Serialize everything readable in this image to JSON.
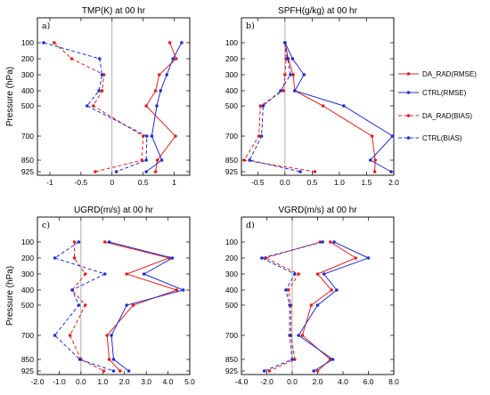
{
  "colors": {
    "da_rad": "#e02020",
    "ctrl": "#1f2fd0"
  },
  "legend": [
    {
      "name": "DA_RAD(RMSE)",
      "color": "#e02020",
      "dash": false
    },
    {
      "name": "CTRL(RMSE)",
      "color": "#1f2fd0",
      "dash": false
    },
    {
      "name": "DA_RAD(BIAS)",
      "color": "#e02020",
      "dash": true
    },
    {
      "name": "CTRL(BIAS)",
      "color": "#1f2fd0",
      "dash": true
    }
  ],
  "chart_data": [
    {
      "type": "line",
      "label": "a)",
      "title": "TMP(K) at 00 hr",
      "ylabel": "Pressure (hPa)",
      "xlim": [
        -1.2,
        1.25
      ],
      "xticks": [
        -1,
        -0.5,
        0,
        0.5,
        1
      ],
      "xtick_labels": [
        "-1",
        "-0.5",
        "0",
        "0.5",
        "1"
      ],
      "pressure_levels": [
        100,
        200,
        300,
        400,
        500,
        700,
        850,
        925
      ],
      "series": [
        {
          "name": "DA_RAD(RMSE)",
          "values": [
            0.93,
            1.03,
            0.76,
            0.7,
            0.55,
            1.02,
            0.73,
            0.7
          ]
        },
        {
          "name": "CTRL(RMSE)",
          "values": [
            1.12,
            0.98,
            0.88,
            0.78,
            0.72,
            0.64,
            0.8,
            0.55
          ]
        },
        {
          "name": "DA_RAD(BIAS)",
          "values": [
            -0.93,
            -0.65,
            -0.13,
            -0.16,
            -0.3,
            0.5,
            0.48,
            -0.27
          ]
        },
        {
          "name": "CTRL(BIAS)",
          "values": [
            -1.1,
            -0.2,
            -0.16,
            -0.21,
            -0.4,
            0.56,
            0.55,
            0.07
          ]
        }
      ]
    },
    {
      "type": "line",
      "label": "b)",
      "title": "SPFH(g/kg) at 00 hr",
      "ylabel": "",
      "xlim": [
        -0.8,
        2.0
      ],
      "xticks": [
        -0.5,
        0,
        0.5,
        1,
        1.5,
        2
      ],
      "xtick_labels": [
        "-0.5",
        "0.0",
        "0.5",
        "1.0",
        "1.5",
        "2.0"
      ],
      "pressure_levels": [
        100,
        200,
        300,
        400,
        500,
        700,
        850,
        925
      ],
      "series": [
        {
          "name": "DA_RAD(RMSE)",
          "values": [
            0.0,
            0.06,
            0.15,
            0.18,
            0.7,
            1.6,
            1.66,
            1.65
          ]
        },
        {
          "name": "CTRL(RMSE)",
          "values": [
            0.0,
            0.14,
            0.35,
            0.18,
            1.08,
            1.98,
            1.57,
            1.95
          ]
        },
        {
          "name": "DA_RAD(BIAS)",
          "values": [
            0.0,
            0.02,
            0.0,
            -0.03,
            -0.45,
            -0.48,
            -0.75,
            0.55
          ]
        },
        {
          "name": "CTRL(BIAS)",
          "values": [
            0.0,
            0.05,
            0.1,
            -0.08,
            -0.4,
            -0.43,
            -0.65,
            0.28
          ]
        }
      ]
    },
    {
      "type": "line",
      "label": "c)",
      "title": "UGRD(m/s) at 00 hr",
      "ylabel": "Pressure (hPa)",
      "xlim": [
        -2.0,
        5.0
      ],
      "xticks": [
        -2,
        -1,
        0,
        1,
        2,
        3,
        4,
        5
      ],
      "xtick_labels": [
        "-2.0",
        "-1.0",
        "0.0",
        "1.0",
        "2.0",
        "3.0",
        "4.0",
        "5.0"
      ],
      "pressure_levels": [
        100,
        200,
        300,
        400,
        500,
        700,
        850,
        925
      ],
      "series": [
        {
          "name": "DA_RAD(RMSE)",
          "values": [
            1.1,
            4.05,
            2.1,
            4.4,
            2.4,
            1.2,
            1.3,
            1.8
          ]
        },
        {
          "name": "CTRL(RMSE)",
          "values": [
            1.3,
            4.2,
            2.9,
            4.7,
            2.1,
            1.4,
            1.5,
            2.2
          ]
        },
        {
          "name": "DA_RAD(BIAS)",
          "values": [
            -0.3,
            -0.3,
            0.2,
            -0.4,
            0.2,
            -0.5,
            0.0,
            1.05
          ]
        },
        {
          "name": "CTRL(BIAS)",
          "values": [
            -0.1,
            -1.2,
            1.1,
            -0.4,
            -0.1,
            -1.2,
            -0.05,
            1.5
          ]
        }
      ]
    },
    {
      "type": "line",
      "label": "d)",
      "title": "VGRD(m/s) at 00 hr",
      "ylabel": "",
      "xlim": [
        -4.0,
        8.0
      ],
      "xticks": [
        -4,
        -2,
        0,
        2,
        4,
        6,
        8
      ],
      "xtick_labels": [
        "-4.0",
        "-2.0",
        "0.0",
        "2.0",
        "4.0",
        "6.0",
        "8.0"
      ],
      "pressure_levels": [
        100,
        200,
        300,
        400,
        500,
        700,
        850,
        925
      ],
      "series": [
        {
          "name": "DA_RAD(RMSE)",
          "values": [
            3.0,
            5.0,
            2.0,
            3.1,
            1.5,
            0.8,
            3.0,
            2.0
          ]
        },
        {
          "name": "CTRL(RMSE)",
          "values": [
            3.3,
            6.0,
            2.5,
            3.5,
            2.0,
            0.5,
            3.2,
            1.7
          ]
        },
        {
          "name": "DA_RAD(BIAS)",
          "values": [
            2.2,
            -2.1,
            0.5,
            -0.3,
            -0.1,
            -0.1,
            0.2,
            -1.8
          ]
        },
        {
          "name": "CTRL(BIAS)",
          "values": [
            2.4,
            -2.4,
            0.2,
            -0.5,
            -0.2,
            -0.2,
            0.0,
            -2.2
          ]
        }
      ]
    }
  ]
}
